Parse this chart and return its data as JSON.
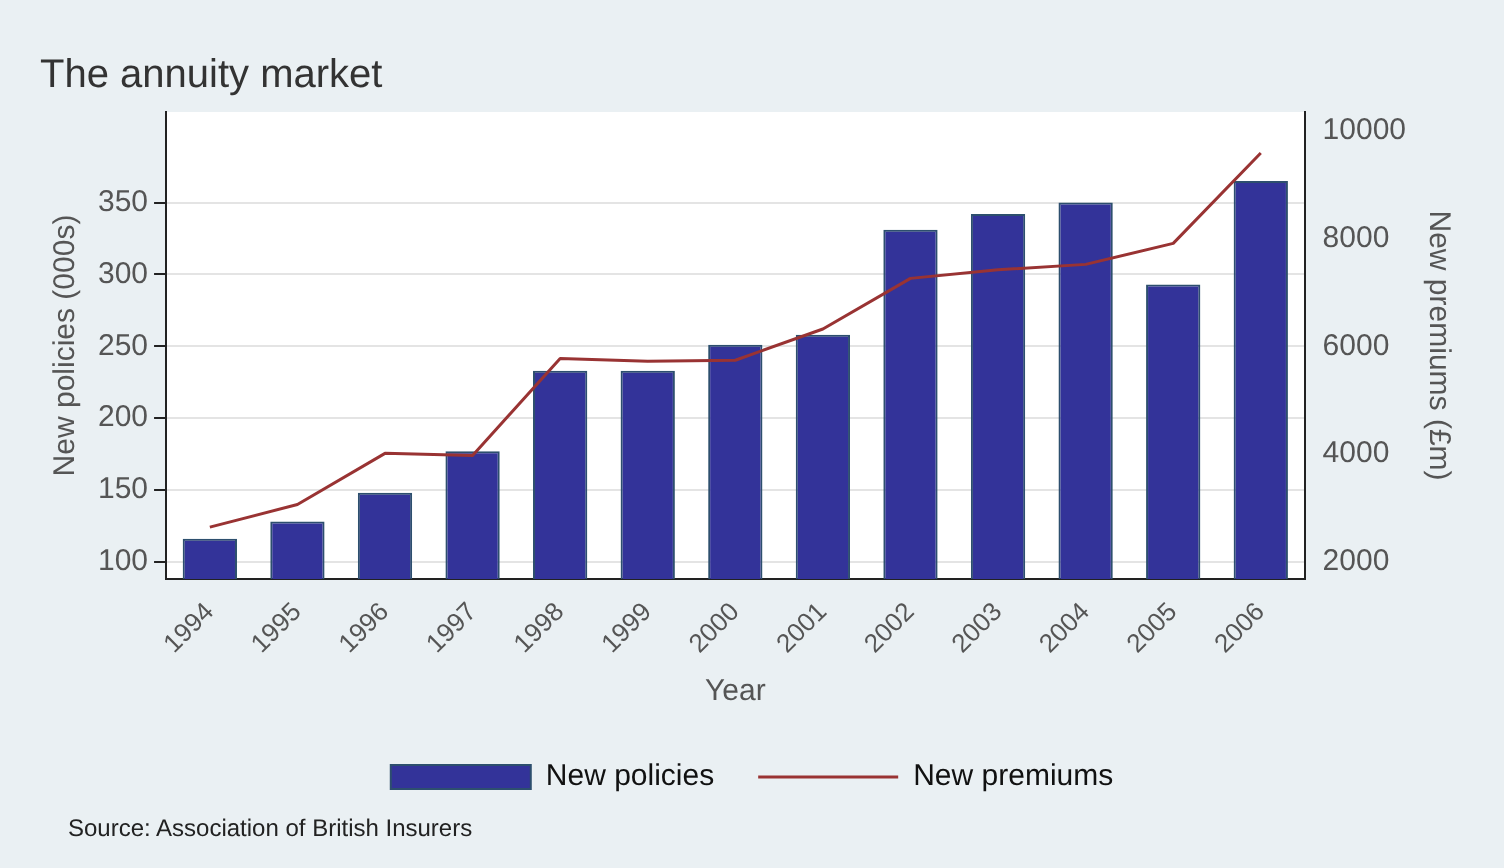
{
  "chart_data": {
    "type": "bar",
    "title": "The annuity market",
    "xlabel": "Year",
    "ylabel": "New policies (000s)",
    "y2label": "New premiums (£m)",
    "categories": [
      "1994",
      "1995",
      "1996",
      "1997",
      "1998",
      "1999",
      "2000",
      "2001",
      "2002",
      "2003",
      "2004",
      "2005",
      "2006"
    ],
    "series": [
      {
        "name": "New policies",
        "color": "#333399",
        "values": [
          116,
          128,
          148,
          177,
          233,
          233,
          251,
          258,
          331,
          342,
          350,
          293,
          365
        ]
      },
      {
        "name": "New premiums",
        "type": "line",
        "axis": "y2",
        "color": "#993333",
        "values": [
          2640,
          3060,
          4010,
          3970,
          5770,
          5720,
          5740,
          6320,
          7260,
          7420,
          7520,
          7910,
          9590
        ]
      }
    ],
    "ylim": [
      88,
      413
    ],
    "yticks": [
      100,
      150,
      200,
      250,
      300,
      350
    ],
    "y2lim": [
      1676,
      10350
    ],
    "y2ticks": [
      2000,
      4000,
      6000,
      8000,
      10000
    ],
    "grid": "y",
    "legend": "bottom",
    "marker": "none",
    "line_style": "solid",
    "annotations": [
      "Source: Association of British Insurers"
    ]
  }
}
